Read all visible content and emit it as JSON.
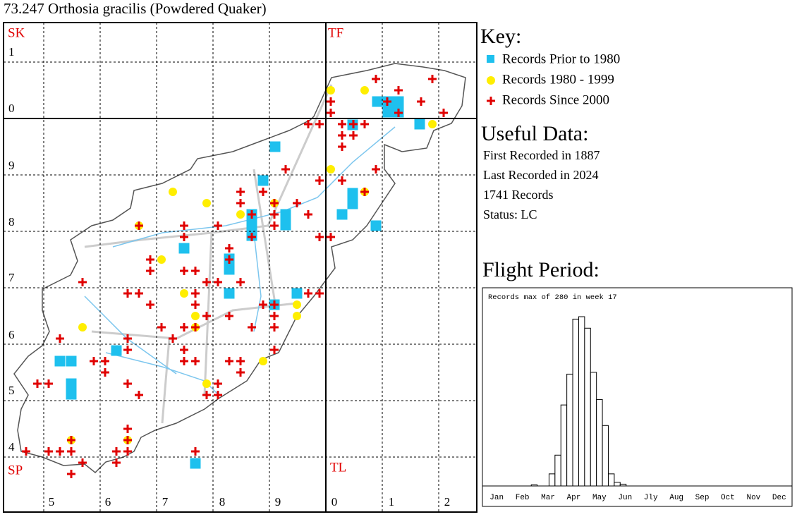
{
  "title": "73.247 Orthosia gracilis (Powdered Quaker)",
  "map": {
    "grid_letters": [
      "SK",
      "TF",
      "SP",
      "TL"
    ],
    "y_labels": [
      "1",
      "0",
      "9",
      "8",
      "7",
      "6",
      "5",
      "4"
    ],
    "x_labels": [
      "5",
      "6",
      "7",
      "8",
      "9",
      "0",
      "1",
      "2"
    ]
  },
  "key": {
    "heading": "Key:",
    "items": [
      "Records Prior to 1980",
      "Records 1980 - 1999",
      "Records Since 2000"
    ]
  },
  "useful_data": {
    "heading": "Useful Data:",
    "lines": [
      "First Recorded in 1887",
      "Last Recorded in 2024",
      "1741 Records",
      "Status: LC"
    ]
  },
  "chart_data": {
    "type": "bar",
    "title": "Flight Period:",
    "annotation": "Records max of 280 in week 17",
    "x_labels": [
      "Jan",
      "Feb",
      "Mar",
      "Apr",
      "May",
      "Jun",
      "Jly",
      "Aug",
      "Sep",
      "Oct",
      "Nov",
      "Dec"
    ],
    "values": [
      0,
      0,
      0,
      0,
      0,
      0,
      0,
      0,
      2,
      0,
      0,
      20,
      51,
      134,
      185,
      276,
      280,
      261,
      188,
      143,
      100,
      20,
      6,
      3,
      0,
      0,
      0,
      0,
      0,
      0,
      0,
      0,
      0,
      0,
      0,
      0,
      0,
      0,
      0,
      0,
      0,
      0,
      0,
      0,
      0,
      0,
      0,
      0,
      0,
      0,
      0,
      0
    ]
  }
}
